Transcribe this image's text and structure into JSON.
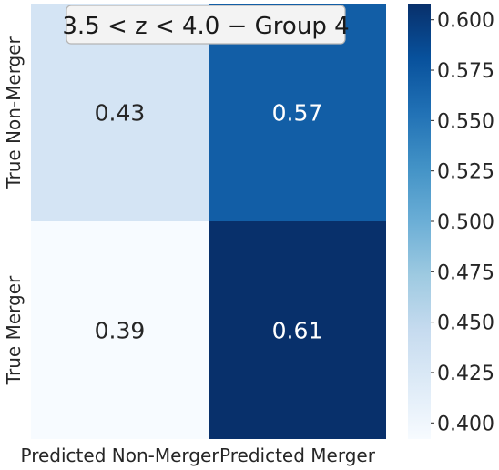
{
  "chart_data": {
    "type": "heatmap",
    "title": "3.5 < z < 4.0 − Group 4",
    "x_categories": [
      "Predicted Non-Merger",
      "Predicted Merger"
    ],
    "y_categories": [
      "True Non-Merger",
      "True Merger"
    ],
    "values": [
      [
        0.43,
        0.57
      ],
      [
        0.39,
        0.61
      ]
    ],
    "cell_labels": [
      [
        "0.43",
        "0.57"
      ],
      [
        "0.39",
        "0.61"
      ]
    ],
    "colormap": "Blues",
    "vmin": 0.392,
    "vmax": 0.608,
    "colorbar_ticks": [
      0.4,
      0.425,
      0.45,
      0.475,
      0.5,
      0.525,
      0.55,
      0.575,
      0.6
    ],
    "colorbar_tick_labels": [
      "0.400",
      "0.425",
      "0.450",
      "0.475",
      "0.500",
      "0.525",
      "0.550",
      "0.575",
      "0.600"
    ],
    "grid": false,
    "colorbar_position": "right"
  }
}
